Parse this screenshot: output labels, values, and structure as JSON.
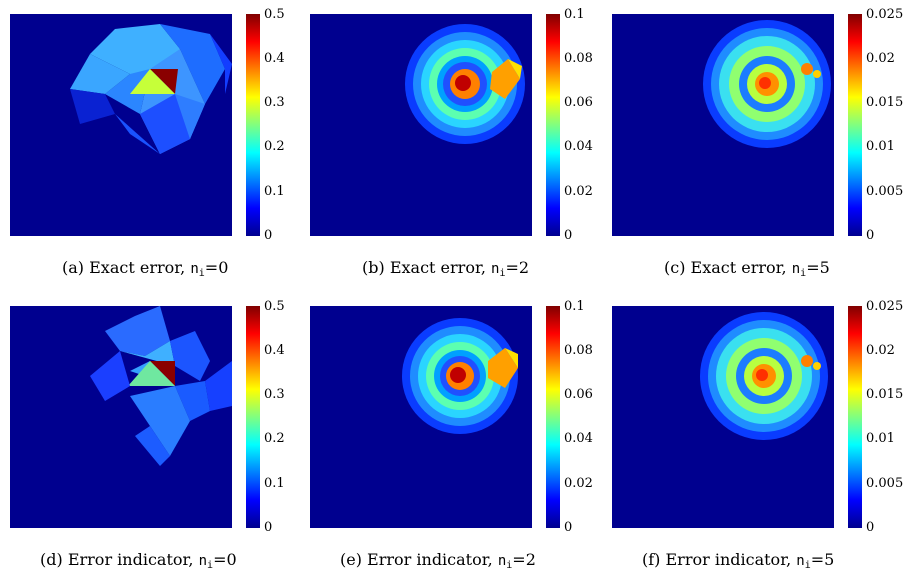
{
  "figure": {
    "panels": [
      {
        "caption_label": "(a)",
        "caption_text": "Exact error,",
        "var": "n",
        "var_sub": "i",
        "eq": "=0",
        "colorbar_ticks": [
          "0",
          "0.1",
          "0.2",
          "0.3",
          "0.4",
          "0.5"
        ],
        "max": 0.5
      },
      {
        "caption_label": "(b)",
        "caption_text": "Exact error,",
        "var": "n",
        "var_sub": "i",
        "eq": "=2",
        "colorbar_ticks": [
          "0",
          "0.02",
          "0.04",
          "0.06",
          "0.08",
          "0.1"
        ],
        "max": 0.1
      },
      {
        "caption_label": "(c)",
        "caption_text": "Exact error,",
        "var": "n",
        "var_sub": "i",
        "eq": "=5",
        "colorbar_ticks": [
          "0",
          "0.005",
          "0.01",
          "0.015",
          "0.02",
          "0.025"
        ],
        "max": 0.025
      },
      {
        "caption_label": "(d)",
        "caption_text": "Error indicator,",
        "var": "n",
        "var_sub": "i",
        "eq": "=0",
        "colorbar_ticks": [
          "0",
          "0.1",
          "0.2",
          "0.3",
          "0.4",
          "0.5"
        ],
        "max": 0.5
      },
      {
        "caption_label": "(e)",
        "caption_text": "Error indicator,",
        "var": "n",
        "var_sub": "i",
        "eq": "=2",
        "colorbar_ticks": [
          "0",
          "0.02",
          "0.04",
          "0.06",
          "0.08",
          "0.1"
        ],
        "max": 0.1
      },
      {
        "caption_label": "(f)",
        "caption_text": "Error indicator,",
        "var": "n",
        "var_sub": "i",
        "eq": "=5",
        "colorbar_ticks": [
          "0",
          "0.005",
          "0.01",
          "0.015",
          "0.02",
          "0.025"
        ],
        "max": 0.025
      }
    ]
  }
}
